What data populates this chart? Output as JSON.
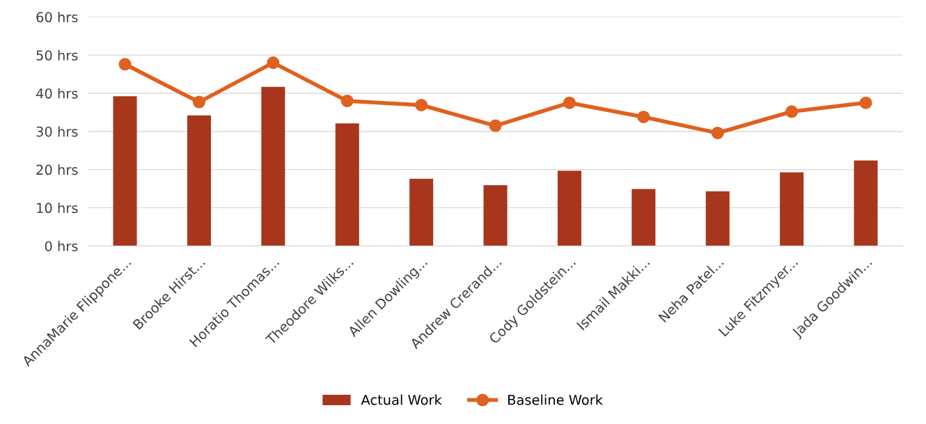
{
  "chart_data": {
    "type": "bar",
    "categories": [
      "AnnaMarie Flippone...",
      "Brooke Hirst...",
      "Horatio Thomas...",
      "Theodore Wilks...",
      "Allen Dowling...",
      "Andrew Crerand...",
      "Cody Goldstein...",
      "Ismail Makki...",
      "Neha Patel...",
      "Luke Fitzmyer...",
      "Jada Goodwin..."
    ],
    "series": [
      {
        "name": "Actual Work",
        "color": "#a8361c",
        "values": [
          39.2,
          34.2,
          41.7,
          32.1,
          17.6,
          15.9,
          19.7,
          14.9,
          14.3,
          19.3,
          22.4
        ]
      },
      {
        "name": "Baseline Work",
        "type": "line",
        "color": "#e0601f",
        "marker": "circle",
        "line_style": "solid",
        "values": [
          47.6,
          37.7,
          48.0,
          38.0,
          36.9,
          31.5,
          37.5,
          33.8,
          29.6,
          35.2,
          37.5
        ]
      }
    ],
    "ylim": [
      0,
      60
    ],
    "yticks": [
      {
        "value": 0,
        "label": "0 hrs"
      },
      {
        "value": 10,
        "label": "10 hrs"
      },
      {
        "value": 20,
        "label": "20 hrs"
      },
      {
        "value": 30,
        "label": "30 hrs"
      },
      {
        "value": 40,
        "label": "40 hrs"
      },
      {
        "value": 50,
        "label": "50 hrs"
      },
      {
        "value": 60,
        "label": "60 hrs"
      }
    ],
    "grid": "y",
    "legend": "bottom"
  }
}
